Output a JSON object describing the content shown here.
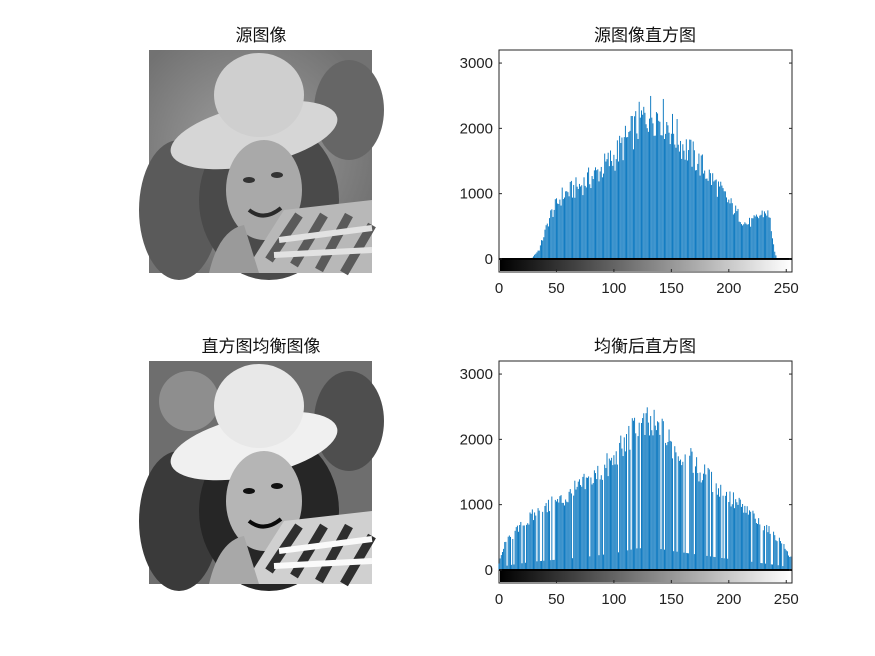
{
  "figure": {
    "panels": [
      {
        "title": "源图像",
        "kind": "image"
      },
      {
        "title": "源图像直方图",
        "kind": "histogram",
        "chart_ref": 0
      },
      {
        "title": "直方图均衡图像",
        "kind": "image"
      },
      {
        "title": "均衡后直方图",
        "kind": "histogram",
        "chart_ref": 1
      }
    ]
  },
  "chart_data": [
    {
      "type": "bar",
      "title": "源图像直方图",
      "xlabel": "",
      "ylabel": "",
      "xlim": [
        0,
        255
      ],
      "ylim": [
        -200,
        3200
      ],
      "x_ticks": [
        0,
        50,
        100,
        150,
        200,
        250
      ],
      "y_ticks": [
        0,
        1000,
        2000,
        3000
      ],
      "bar_color": "#0072BD",
      "colorbar": "grayscale 0-255",
      "grid": false,
      "profile": [
        [
          0,
          0
        ],
        [
          28,
          0
        ],
        [
          35,
          150
        ],
        [
          45,
          700
        ],
        [
          55,
          1000
        ],
        [
          70,
          1150
        ],
        [
          85,
          1350
        ],
        [
          100,
          1600
        ],
        [
          112,
          1900
        ],
        [
          122,
          2150
        ],
        [
          130,
          2300
        ],
        [
          140,
          2280
        ],
        [
          150,
          2050
        ],
        [
          160,
          1800
        ],
        [
          175,
          1500
        ],
        [
          190,
          1150
        ],
        [
          200,
          900
        ],
        [
          208,
          700
        ],
        [
          215,
          550
        ],
        [
          222,
          600
        ],
        [
          228,
          700
        ],
        [
          233,
          750
        ],
        [
          236,
          600
        ],
        [
          240,
          100
        ],
        [
          242,
          0
        ],
        [
          255,
          0
        ]
      ]
    },
    {
      "type": "bar",
      "title": "均衡后直方图",
      "xlabel": "",
      "ylabel": "",
      "xlim": [
        0,
        255
      ],
      "ylim": [
        -200,
        3200
      ],
      "x_ticks": [
        0,
        50,
        100,
        150,
        200,
        250
      ],
      "y_ticks": [
        0,
        1000,
        2000,
        3000
      ],
      "bar_color": "#0072BD",
      "colorbar": "grayscale 0-255",
      "grid": false,
      "profile": [
        [
          0,
          100
        ],
        [
          5,
          400
        ],
        [
          15,
          600
        ],
        [
          30,
          850
        ],
        [
          45,
          1000
        ],
        [
          60,
          1150
        ],
        [
          80,
          1400
        ],
        [
          100,
          1700
        ],
        [
          112,
          2000
        ],
        [
          120,
          2200
        ],
        [
          130,
          2250
        ],
        [
          140,
          2150
        ],
        [
          150,
          1950
        ],
        [
          165,
          1700
        ],
        [
          180,
          1450
        ],
        [
          195,
          1200
        ],
        [
          210,
          1000
        ],
        [
          225,
          750
        ],
        [
          235,
          600
        ],
        [
          245,
          450
        ],
        [
          250,
          300
        ],
        [
          254,
          200
        ]
      ]
    }
  ]
}
